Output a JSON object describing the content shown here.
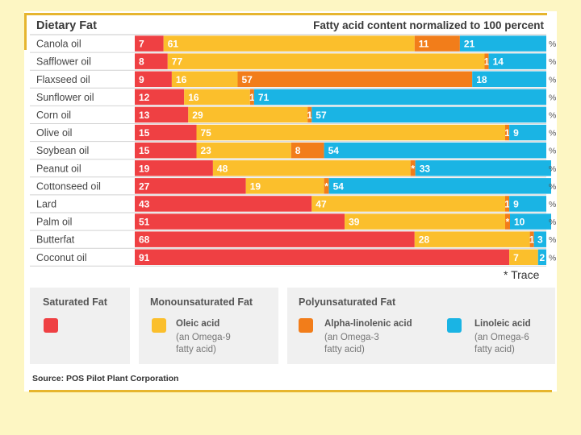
{
  "chart_data": {
    "type": "stacked-bar-horizontal",
    "title": "Dietary Fat",
    "subtitle": "Fatty acid content normalized to 100 percent",
    "categories": [
      "Canola oil",
      "Safflower oil",
      "Flaxseed oil",
      "Sunflower oil",
      "Corn oil",
      "Olive oil",
      "Soybean oil",
      "Peanut oil",
      "Cottonseed oil",
      "Lard",
      "Palm oil",
      "Butterfat",
      "Coconut oil"
    ],
    "series": [
      {
        "name": "Saturated Fat",
        "color": "#ef4043",
        "values": [
          7,
          8,
          9,
          12,
          13,
          15,
          15,
          19,
          27,
          43,
          51,
          68,
          91
        ]
      },
      {
        "name": "Oleic acid",
        "color": "#fbbf2c",
        "values": [
          61,
          77,
          16,
          16,
          29,
          75,
          23,
          48,
          19,
          47,
          39,
          28,
          7
        ]
      },
      {
        "name": "Alpha-linolenic acid",
        "color": "#f27d1a",
        "values": [
          11,
          1,
          57,
          1,
          1,
          1,
          8,
          "*",
          "*",
          1,
          "*",
          1,
          null
        ]
      },
      {
        "name": "Linoleic acid",
        "color": "#1ab4e4",
        "values": [
          21,
          14,
          18,
          71,
          57,
          9,
          54,
          33,
          54,
          9,
          10,
          3,
          2
        ]
      }
    ],
    "unit": "%",
    "xlim": [
      0,
      100
    ],
    "trace_note": "* Trace"
  },
  "legend": {
    "groups": [
      {
        "title": "Saturated Fat"
      },
      {
        "title": "Monounsaturated Fat"
      },
      {
        "title": "Polyunsaturated Fat"
      }
    ],
    "items": [
      {
        "name": "Oleic acid",
        "note1": "(an Omega-9",
        "note2": "fatty acid)",
        "color": "#fbbf2c"
      },
      {
        "name": "Alpha-linolenic acid",
        "note1": "(an Omega-3",
        "note2": "fatty acid)",
        "color": "#f27d1a"
      },
      {
        "name": "Linoleic acid",
        "note1": "(an Omega-6",
        "note2": "fatty acid)",
        "color": "#1ab4e4"
      }
    ],
    "saturated_color": "#ef4043"
  },
  "source": "Source: POS Pilot Plant Corporation"
}
